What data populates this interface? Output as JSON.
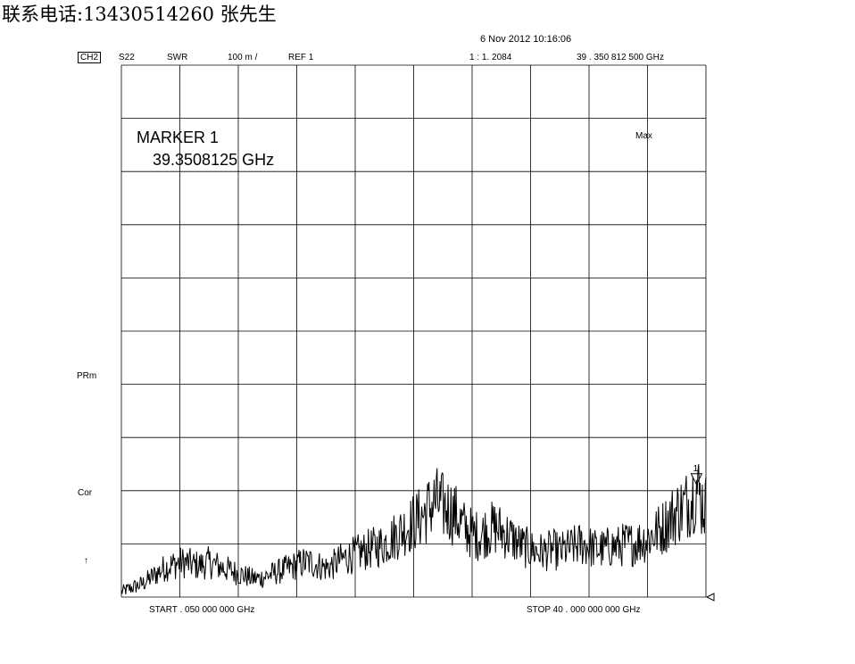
{
  "header": {
    "contact": "联系电话:13430514260 张先生",
    "datetime": "6 Nov 2012  10:16:06"
  },
  "status_bar": {
    "channel": "CH2",
    "param": "S22",
    "format": "SWR",
    "scale": "100 m /",
    "ref": "REF 1",
    "marker_readout": "1 :  1. 2084",
    "marker_freq_readout": "39 . 350    812    500    GHz"
  },
  "annotations": {
    "marker_title": "MARKER 1",
    "marker_freq": "39.3508125 GHz",
    "max_label": "Max",
    "prm_label": "PRm",
    "cor_label": "Cor",
    "arrow_label": "↑",
    "marker_number": "1"
  },
  "axis": {
    "start_label": "START     . 050    000    000    GHz",
    "stop_label": "STOP    40 . 000    000    000    GHz"
  },
  "chart_data": {
    "type": "line",
    "parameter": "S22",
    "format": "SWR",
    "x_start_ghz": 0.05,
    "x_stop_ghz": 40.0,
    "reference_value": 1.0,
    "scale_per_div": 0.1,
    "divisions_x": 10,
    "divisions_y": 10,
    "ylim": [
      1.0,
      2.0
    ],
    "grid": true,
    "marker": {
      "number": 1,
      "freq_ghz": 39.3508125,
      "value": 1.2084
    },
    "x": [
      0.05,
      0.5,
      1.0,
      1.5,
      2.0,
      2.5,
      3.0,
      3.5,
      4.0,
      4.5,
      5.0,
      5.5,
      6.0,
      6.5,
      7.0,
      7.5,
      8.0,
      8.5,
      9.0,
      9.5,
      10.0,
      10.5,
      11.0,
      11.5,
      12.0,
      12.5,
      13.0,
      13.5,
      14.0,
      14.5,
      15.0,
      15.5,
      16.0,
      16.5,
      17.0,
      17.5,
      18.0,
      18.5,
      19.0,
      19.5,
      20.0,
      20.5,
      21.0,
      21.5,
      22.0,
      22.5,
      23.0,
      23.5,
      24.0,
      24.5,
      25.0,
      25.5,
      26.0,
      26.5,
      27.0,
      27.5,
      28.0,
      28.5,
      29.0,
      29.5,
      30.0,
      30.5,
      31.0,
      31.5,
      32.0,
      32.5,
      33.0,
      33.5,
      34.0,
      34.5,
      35.0,
      35.5,
      36.0,
      36.5,
      37.0,
      37.5,
      38.0,
      38.5,
      39.0,
      39.35,
      39.7,
      40.0
    ],
    "values": [
      1.01,
      1.015,
      1.02,
      1.025,
      1.035,
      1.045,
      1.055,
      1.06,
      1.065,
      1.065,
      1.06,
      1.06,
      1.065,
      1.06,
      1.055,
      1.05,
      1.045,
      1.04,
      1.035,
      1.035,
      1.04,
      1.045,
      1.05,
      1.055,
      1.06,
      1.065,
      1.065,
      1.06,
      1.055,
      1.06,
      1.07,
      1.075,
      1.08,
      1.085,
      1.09,
      1.095,
      1.1,
      1.11,
      1.12,
      1.13,
      1.14,
      1.15,
      1.165,
      1.18,
      1.17,
      1.165,
      1.15,
      1.13,
      1.12,
      1.115,
      1.125,
      1.13,
      1.125,
      1.115,
      1.105,
      1.095,
      1.09,
      1.085,
      1.085,
      1.09,
      1.085,
      1.09,
      1.095,
      1.1,
      1.095,
      1.09,
      1.09,
      1.095,
      1.095,
      1.1,
      1.1,
      1.105,
      1.11,
      1.12,
      1.13,
      1.145,
      1.16,
      1.17,
      1.185,
      1.2084,
      1.18,
      1.17
    ]
  }
}
